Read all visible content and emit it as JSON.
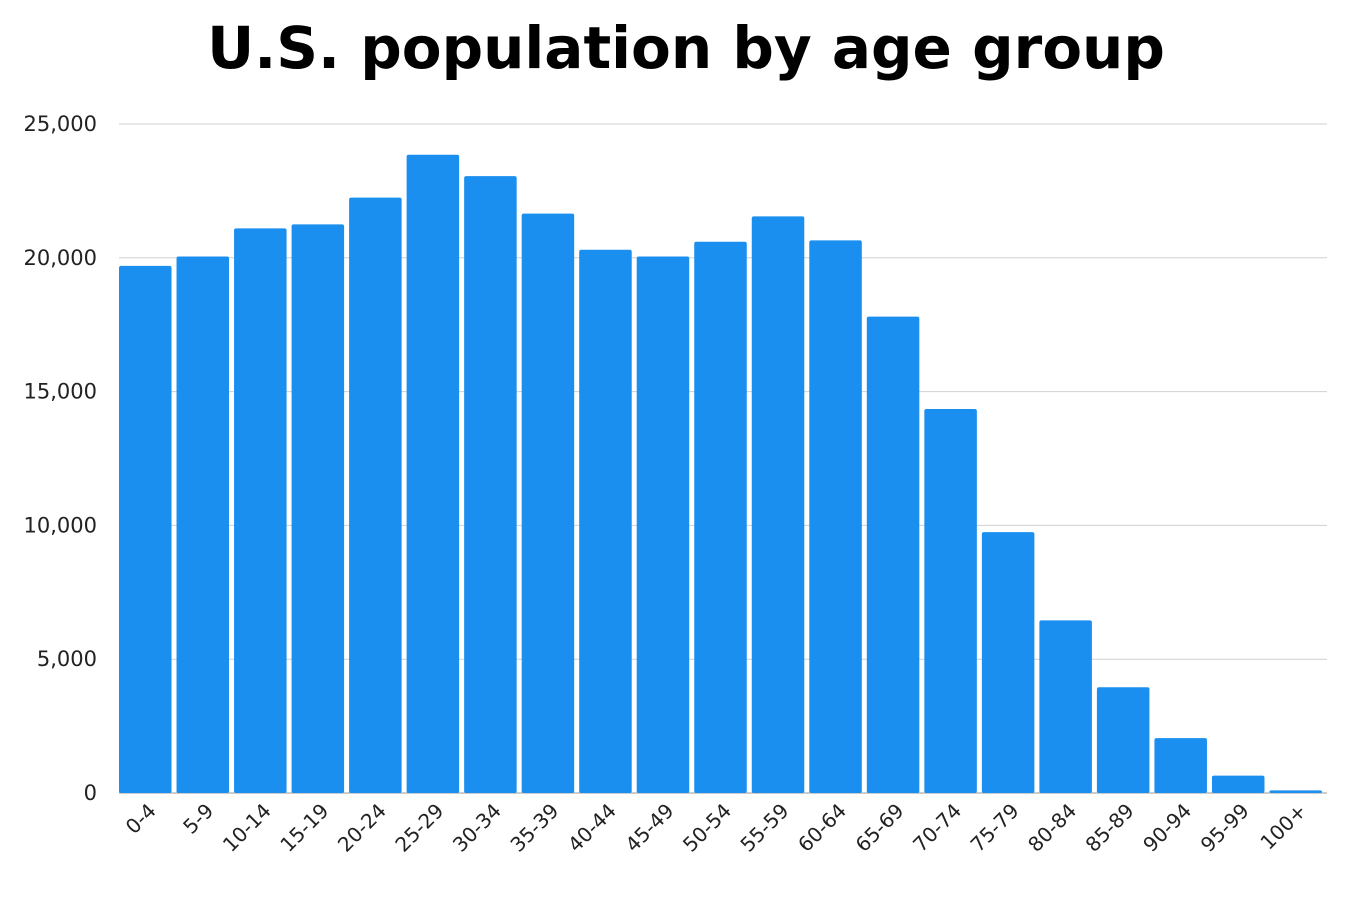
{
  "chart_data": {
    "type": "bar",
    "title": "U.S. population by age group",
    "xlabel": "",
    "ylabel": "",
    "categories": [
      "0-4",
      "5-9",
      "10-14",
      "15-19",
      "20-24",
      "25-29",
      "30-34",
      "35-39",
      "40-44",
      "45-49",
      "50-54",
      "55-59",
      "60-64",
      "65-69",
      "70-74",
      "75-79",
      "80-84",
      "85-89",
      "90-94",
      "95-99",
      "100+"
    ],
    "values": [
      19700,
      20050,
      21100,
      21250,
      22250,
      23850,
      23050,
      21650,
      20300,
      20050,
      20600,
      21550,
      20650,
      17800,
      14350,
      9750,
      6450,
      3950,
      2050,
      650,
      100
    ],
    "ylim": [
      0,
      25000
    ],
    "yticks": [
      0,
      5000,
      10000,
      15000,
      20000,
      25000
    ],
    "ytick_labels": [
      "0",
      "5,000",
      "10,000",
      "15,000",
      "20,000",
      "25,000"
    ],
    "grid": true,
    "bar_color": "#1a8fef"
  }
}
